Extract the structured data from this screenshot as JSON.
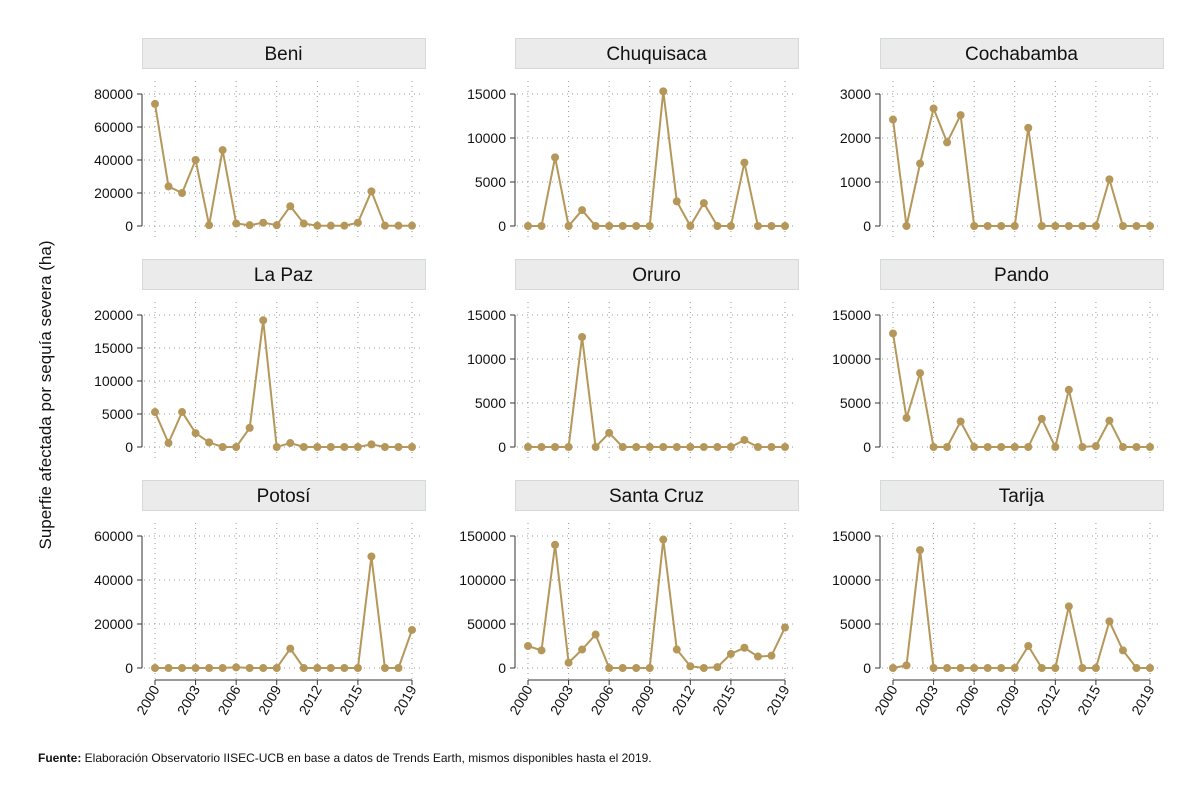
{
  "chart_data": {
    "type": "line",
    "ylabel": "Superfie afectada por sequía severa (ha)",
    "x": [
      2000,
      2001,
      2002,
      2003,
      2004,
      2005,
      2006,
      2007,
      2008,
      2009,
      2010,
      2011,
      2012,
      2013,
      2014,
      2015,
      2016,
      2017,
      2018,
      2019
    ],
    "x_ticks": [
      "2000",
      "2003",
      "2006",
      "2009",
      "2012",
      "2015",
      "2019"
    ],
    "series_color": "#b5975a",
    "panels": [
      {
        "name": "Beni",
        "ylim": [
          0,
          80000
        ],
        "y_ticks": [
          "0",
          "20000",
          "40000",
          "60000",
          "80000"
        ],
        "values": [
          74000,
          24000,
          20000,
          40000,
          500,
          46000,
          1500,
          500,
          2000,
          500,
          12000,
          1500,
          200,
          200,
          200,
          2000,
          21000,
          200,
          200,
          200
        ]
      },
      {
        "name": "Chuquisaca",
        "ylim": [
          0,
          15000
        ],
        "y_ticks": [
          "0",
          "5000",
          "10000",
          "15000"
        ],
        "values": [
          0,
          0,
          7800,
          0,
          1800,
          0,
          0,
          0,
          0,
          0,
          15300,
          2800,
          0,
          2600,
          0,
          0,
          7200,
          0,
          0,
          0
        ]
      },
      {
        "name": "Cochabamba",
        "ylim": [
          0,
          3000
        ],
        "y_ticks": [
          "0",
          "1000",
          "2000",
          "3000"
        ],
        "values": [
          2420,
          0,
          1420,
          2670,
          1900,
          2520,
          0,
          0,
          0,
          0,
          2230,
          0,
          0,
          0,
          0,
          0,
          1060,
          0,
          0,
          0
        ]
      },
      {
        "name": "La Paz",
        "ylim": [
          0,
          20000
        ],
        "y_ticks": [
          "0",
          "5000",
          "10000",
          "15000",
          "20000"
        ],
        "values": [
          5300,
          600,
          5300,
          2100,
          700,
          0,
          0,
          2900,
          19200,
          0,
          600,
          0,
          0,
          0,
          0,
          0,
          400,
          0,
          0,
          0
        ]
      },
      {
        "name": "Oruro",
        "ylim": [
          0,
          15000
        ],
        "y_ticks": [
          "0",
          "5000",
          "10000",
          "15000"
        ],
        "values": [
          0,
          0,
          0,
          0,
          12500,
          0,
          1600,
          0,
          0,
          0,
          0,
          0,
          0,
          0,
          0,
          0,
          800,
          0,
          0,
          0
        ]
      },
      {
        "name": "Pando",
        "ylim": [
          0,
          15000
        ],
        "y_ticks": [
          "0",
          "5000",
          "10000",
          "15000"
        ],
        "values": [
          12900,
          3300,
          8400,
          0,
          0,
          2900,
          0,
          0,
          0,
          0,
          0,
          3200,
          0,
          6500,
          0,
          100,
          3000,
          0,
          0,
          0
        ]
      },
      {
        "name": "Potosí",
        "ylim": [
          0,
          60000
        ],
        "y_ticks": [
          "0",
          "20000",
          "40000",
          "60000"
        ],
        "values": [
          0,
          0,
          0,
          0,
          0,
          0,
          300,
          0,
          0,
          0,
          8800,
          0,
          0,
          0,
          0,
          0,
          50700,
          0,
          0,
          17300
        ]
      },
      {
        "name": "Santa Cruz",
        "ylim": [
          0,
          150000
        ],
        "y_ticks": [
          "0",
          "50000",
          "100000",
          "150000"
        ],
        "values": [
          25000,
          20000,
          140000,
          6000,
          21000,
          38000,
          0,
          0,
          0,
          0,
          146000,
          21000,
          2000,
          0,
          1000,
          16000,
          23000,
          13000,
          14000,
          46000
        ]
      },
      {
        "name": "Tarija",
        "ylim": [
          0,
          15000
        ],
        "y_ticks": [
          "0",
          "5000",
          "10000",
          "15000"
        ],
        "values": [
          0,
          300,
          13400,
          0,
          0,
          0,
          0,
          0,
          0,
          0,
          2500,
          0,
          0,
          7000,
          0,
          0,
          5300,
          2000,
          0,
          0
        ]
      }
    ]
  },
  "source": {
    "label": "Fuente:",
    "text": " Elaboración Observatorio IISEC-UCB en base a datos de Trends Earth, mismos disponibles hasta el 2019."
  }
}
